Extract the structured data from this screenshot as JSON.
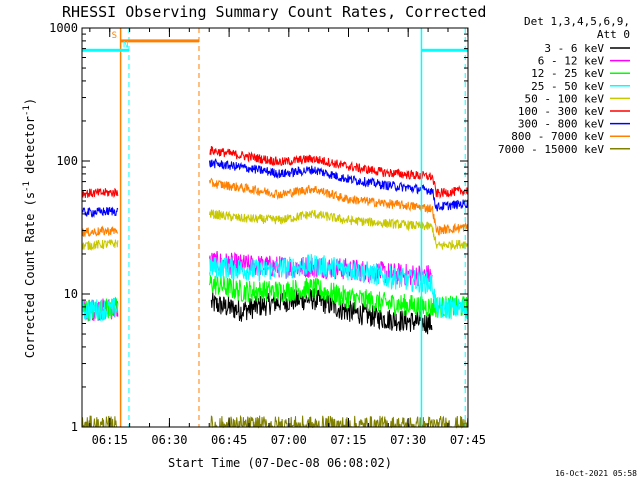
{
  "chart_data": {
    "type": "line",
    "title": "RHESSI Observing Summary Count Rates, Corrected",
    "xlabel": "Start Time (07-Dec-08 06:08:02)",
    "ylabel_parts": [
      "Corrected Count Rate (s",
      "-1",
      " detector",
      "-1",
      ")"
    ],
    "yscale": "log",
    "ylim": [
      1,
      1000
    ],
    "xlim_minutes": [
      0,
      97
    ],
    "y_ticks": [
      {
        "value": 1,
        "label": "1"
      },
      {
        "value": 10,
        "label": "10"
      },
      {
        "value": 100,
        "label": "100"
      },
      {
        "value": 1000,
        "label": "1000"
      }
    ],
    "x_ticks": [
      {
        "minute": 6.97,
        "label": "06:15"
      },
      {
        "minute": 21.97,
        "label": "06:30"
      },
      {
        "minute": 36.97,
        "label": "06:45"
      },
      {
        "minute": 51.97,
        "label": "07:00"
      },
      {
        "minute": 66.97,
        "label": "07:15"
      },
      {
        "minute": 81.97,
        "label": "07:30"
      },
      {
        "minute": 96.97,
        "label": "07:45"
      }
    ],
    "legend": {
      "header": [
        "Det 1,3,4,5,6,9,",
        "Att 0"
      ],
      "placement": "right"
    },
    "gaps_minutes": [
      [
        9.0,
        32.0
      ]
    ],
    "series": [
      {
        "name": "3 - 6 keV",
        "color": "#000000",
        "start_minute": 32.5,
        "end_minute": 88.0,
        "knots": [
          [
            32.5,
            8.5
          ],
          [
            40,
            7.5
          ],
          [
            50,
            8.8
          ],
          [
            58,
            9.2
          ],
          [
            66,
            7.5
          ],
          [
            76,
            6.5
          ],
          [
            88,
            6.0
          ]
        ]
      },
      {
        "name": "6 - 12 keV",
        "color": "#ff00ff",
        "knots": [
          [
            0,
            7.5
          ],
          [
            8.8,
            7.8
          ],
          [
            32.5,
            17.5
          ],
          [
            40,
            16.5
          ],
          [
            50,
            16.0
          ],
          [
            60,
            16.0
          ],
          [
            70,
            15.0
          ],
          [
            80,
            14.0
          ],
          [
            88,
            13.8
          ]
        ]
      },
      {
        "name": "12 - 25 keV",
        "color": "#00ff00",
        "knots": [
          [
            0,
            7.5
          ],
          [
            8.8,
            7.8
          ],
          [
            32.5,
            12
          ],
          [
            40,
            10.5
          ],
          [
            50,
            10.5
          ],
          [
            58,
            11
          ],
          [
            66,
            9.5
          ],
          [
            76,
            8.5
          ],
          [
            88,
            8.0
          ],
          [
            97,
            8.0
          ]
        ]
      },
      {
        "name": "25 - 50 keV",
        "color": "#00ffff",
        "knots": [
          [
            0,
            7.5
          ],
          [
            8.8,
            7.8
          ],
          [
            32.5,
            16
          ],
          [
            45,
            15
          ],
          [
            58,
            16.5
          ],
          [
            66,
            15.5
          ],
          [
            76,
            13.5
          ],
          [
            88,
            12.0
          ],
          [
            89,
            7.8
          ],
          [
            97,
            7.8
          ]
        ]
      },
      {
        "name": "50 - 100 keV",
        "color": "#c8c800",
        "knots": [
          [
            0,
            23
          ],
          [
            8.8,
            24
          ],
          [
            32.5,
            40
          ],
          [
            40,
            37
          ],
          [
            50,
            36
          ],
          [
            58,
            40
          ],
          [
            66,
            36
          ],
          [
            76,
            34
          ],
          [
            88,
            32
          ],
          [
            89,
            23
          ],
          [
            97,
            24
          ]
        ]
      },
      {
        "name": "100 - 300 keV",
        "color": "#ff0000",
        "knots": [
          [
            0,
            57
          ],
          [
            8.8,
            58
          ],
          [
            32.5,
            120
          ],
          [
            40,
            110
          ],
          [
            50,
            98
          ],
          [
            58,
            104
          ],
          [
            66,
            92
          ],
          [
            76,
            82
          ],
          [
            88,
            76
          ],
          [
            89,
            57
          ],
          [
            97,
            60
          ]
        ]
      },
      {
        "name": "300 - 800 keV",
        "color": "#0000ff",
        "knots": [
          [
            0,
            41
          ],
          [
            8.8,
            42
          ],
          [
            32.5,
            96
          ],
          [
            40,
            90
          ],
          [
            50,
            80
          ],
          [
            58,
            86
          ],
          [
            66,
            74
          ],
          [
            76,
            66
          ],
          [
            88,
            60
          ],
          [
            89,
            45
          ],
          [
            97,
            48
          ]
        ]
      },
      {
        "name": "800 - 7000 keV",
        "color": "#ff8000",
        "knots": [
          [
            0,
            29
          ],
          [
            8.8,
            30
          ],
          [
            32.5,
            68
          ],
          [
            40,
            63
          ],
          [
            50,
            56
          ],
          [
            58,
            62
          ],
          [
            66,
            52
          ],
          [
            76,
            48
          ],
          [
            88,
            44
          ],
          [
            89,
            30
          ],
          [
            97,
            32
          ]
        ]
      },
      {
        "name": "7000 - 15000 keV",
        "color": "#808000",
        "knots": [
          [
            0,
            1
          ],
          [
            97,
            1
          ]
        ]
      }
    ],
    "flag_bars": [
      {
        "label": "S",
        "color": "#ff8000",
        "start_minute": 9.7,
        "end_minute": 29.4,
        "value": 800,
        "label_color": "#ff8000"
      },
      {
        "label": "N",
        "color": "#00ffff",
        "start_minute": 0,
        "end_minute": 11.8,
        "value": 680,
        "label_color": "#00ffff",
        "second_start_minute": 85.3,
        "second_end_minute": 97
      }
    ],
    "markers": [
      {
        "minute": 9.7,
        "color": "#ff8000",
        "style": "solid"
      },
      {
        "minute": 11.8,
        "color": "#00ffff",
        "style": "dashed"
      },
      {
        "minute": 29.4,
        "color": "#ff8000",
        "style": "dashed"
      },
      {
        "minute": 85.3,
        "color": "#00ffff",
        "style": "solid"
      },
      {
        "minute": 96.3,
        "color": "#00ffff",
        "style": "dashed"
      }
    ]
  },
  "footer": {
    "timestamp": "16-Oct-2021 05:58"
  }
}
